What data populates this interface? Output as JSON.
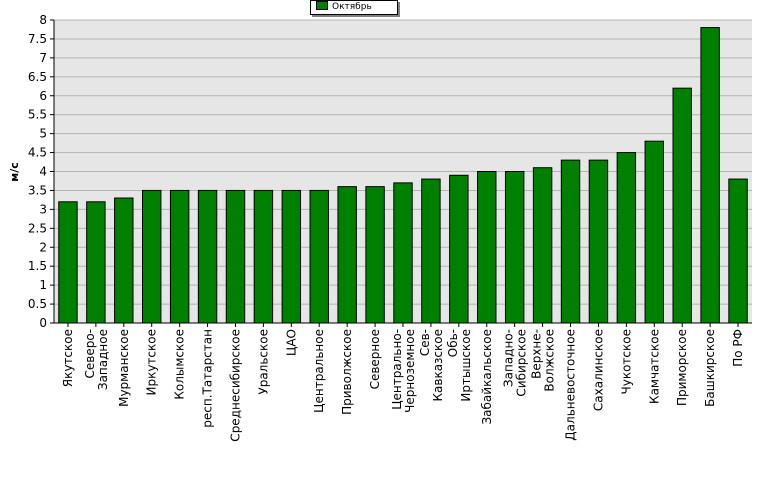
{
  "chart_data": {
    "type": "bar",
    "ylabel": "м/с",
    "xlabel": "",
    "ylim": [
      0,
      8
    ],
    "ytick_step": 0.5,
    "grid": true,
    "legend_position": "top-center",
    "colors": {
      "bar": "#008000",
      "plot_bg": "#e6e6e6",
      "grid": "#b4b4b4"
    },
    "categories": [
      "Якутское",
      "Северо-Западное",
      "Мурманское",
      "Иркутское",
      "Колымское",
      "респ.Татарстан",
      "Среднесибирское",
      "Уральское",
      "ЦАО",
      "Центральное",
      "Приволжское",
      "Северное",
      "Центрально-Черноземное",
      "Сев-Кавказское",
      "Обь-Иртышское",
      "Забайкальское",
      "Западно-Сибирское",
      "Верхне-Волжское",
      "Дальневосточное",
      "Сахалинское",
      "Чукотское",
      "Камчатское",
      "Приморское",
      "Башкирское",
      "По РФ"
    ],
    "series": [
      {
        "name": "Октябрь",
        "values": [
          3.2,
          3.2,
          3.3,
          3.5,
          3.5,
          3.5,
          3.5,
          3.5,
          3.5,
          3.5,
          3.6,
          3.6,
          3.7,
          3.8,
          3.9,
          4.0,
          4.0,
          4.1,
          4.3,
          4.3,
          4.5,
          4.8,
          6.2,
          7.8,
          3.8
        ]
      }
    ]
  }
}
